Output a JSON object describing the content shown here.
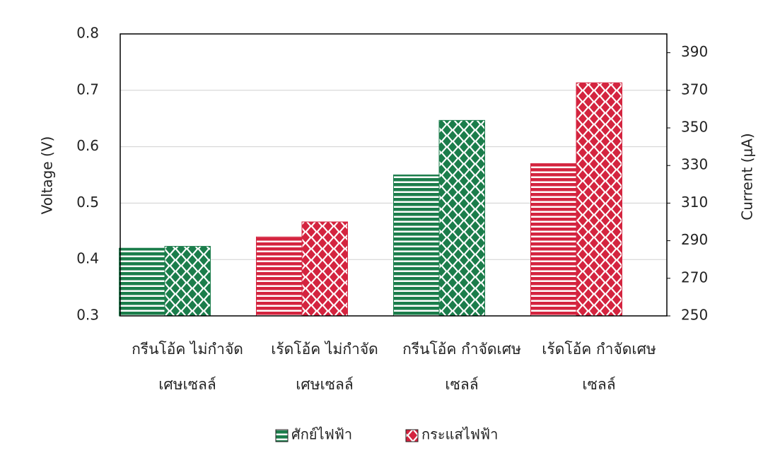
{
  "chart_data": {
    "type": "bar",
    "categories": [
      [
        "กรีนโอ้ค ไม่กำจัด",
        "เศษเซลล์"
      ],
      [
        "เร้ดโอ้ค ไม่กำจัด",
        "เศษเซลล์"
      ],
      [
        "กรีนโอ้ค กำจัดเศษ",
        "เซลล์"
      ],
      [
        "เร้ดโอ้ค กำจัดเศษ",
        "เซลล์"
      ]
    ],
    "category_colors": [
      "#1b7d4b",
      "#d4243f",
      "#1b7d4b",
      "#d4243f"
    ],
    "series": [
      {
        "name": "ศักย์ไฟฟ้า",
        "color": "#1b7d4b",
        "values": [
          0.42,
          0.44,
          0.55,
          0.57
        ]
      },
      {
        "name": "กระแสไฟฟ้า",
        "color": "#d4243f",
        "axis": "y2",
        "values": [
          287,
          300,
          354,
          374
        ]
      }
    ],
    "ylabel": "Voltage (V)",
    "y2label": "Current (μA)",
    "ylim": [
      0.3,
      0.8
    ],
    "yticks": [
      0.3,
      0.4,
      0.5,
      0.6,
      0.7,
      0.8
    ],
    "y2lim": [
      250,
      400
    ],
    "y2ticks": [
      250,
      270,
      290,
      310,
      330,
      350,
      370,
      390
    ],
    "grid": true,
    "legend": "bottom"
  }
}
